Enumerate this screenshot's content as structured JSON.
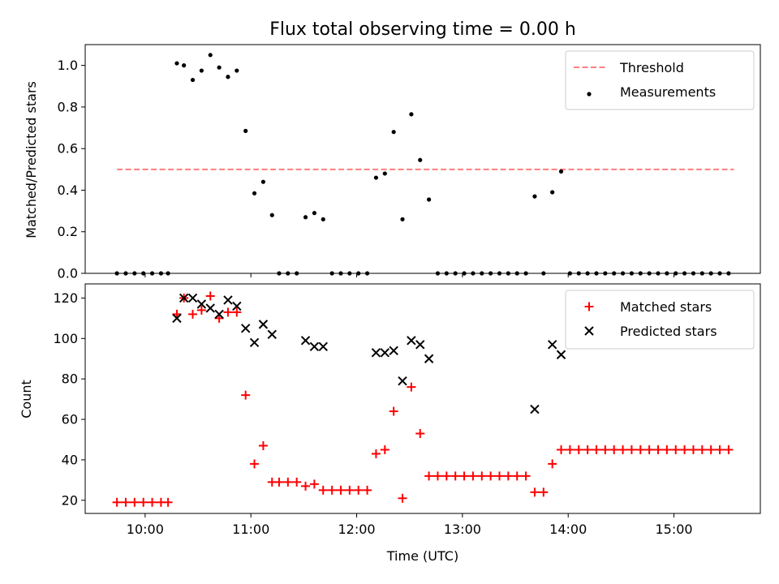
{
  "title": "Flux total observing time = 0.00 h",
  "x_axis": {
    "label": "Time (UTC)",
    "ticks": [
      "10:00",
      "11:00",
      "12:00",
      "13:00",
      "14:00",
      "15:00"
    ]
  },
  "colors": {
    "threshold": "#ff7f7f",
    "measurements": "#000000",
    "matched": "#ff0000",
    "predicted": "#000000"
  },
  "chart_data": [
    {
      "type": "scatter",
      "ylabel": "Matched/Predicted stars",
      "xlim": [
        "09:26",
        "15:49"
      ],
      "ylim": [
        0,
        1.1
      ],
      "yticks": [
        "0.0",
        "0.2",
        "0.4",
        "0.6",
        "0.8",
        "1.0"
      ],
      "legend_position": "top-right",
      "threshold": {
        "name": "Threshold",
        "y": 0.5,
        "x_start": "09:44",
        "x_end": "15:34"
      },
      "series": [
        {
          "name": "Measurements",
          "marker": "dot",
          "points": [
            [
              "09:44",
              0.0
            ],
            [
              "09:49",
              0.0
            ],
            [
              "09:54",
              0.0
            ],
            [
              "09:59",
              0.0
            ],
            [
              "10:04",
              0.0
            ],
            [
              "10:09",
              0.0
            ],
            [
              "10:13",
              0.0
            ],
            [
              "10:18",
              1.01
            ],
            [
              "10:22",
              1.0
            ],
            [
              "10:27",
              0.93
            ],
            [
              "10:32",
              0.975
            ],
            [
              "10:37",
              1.05
            ],
            [
              "10:42",
              0.99
            ],
            [
              "10:47",
              0.945
            ],
            [
              "10:52",
              0.975
            ],
            [
              "10:57",
              0.685
            ],
            [
              "11:02",
              0.385
            ],
            [
              "11:07",
              0.44
            ],
            [
              "11:12",
              0.28
            ],
            [
              "11:16",
              0.0
            ],
            [
              "11:21",
              0.0
            ],
            [
              "11:26",
              0.0
            ],
            [
              "11:31",
              0.27
            ],
            [
              "11:36",
              0.29
            ],
            [
              "11:41",
              0.26
            ],
            [
              "11:46",
              0.0
            ],
            [
              "11:51",
              0.0
            ],
            [
              "11:56",
              0.0
            ],
            [
              "12:01",
              0.0
            ],
            [
              "12:06",
              0.0
            ],
            [
              "12:11",
              0.46
            ],
            [
              "12:16",
              0.48
            ],
            [
              "12:21",
              0.68
            ],
            [
              "12:26",
              0.26
            ],
            [
              "12:31",
              0.765
            ],
            [
              "12:36",
              0.545
            ],
            [
              "12:41",
              0.355
            ],
            [
              "12:46",
              0.0
            ],
            [
              "12:51",
              0.0
            ],
            [
              "12:56",
              0.0
            ],
            [
              "13:01",
              0.0
            ],
            [
              "13:06",
              0.0
            ],
            [
              "13:11",
              0.0
            ],
            [
              "13:16",
              0.0
            ],
            [
              "13:21",
              0.0
            ],
            [
              "13:26",
              0.0
            ],
            [
              "13:31",
              0.0
            ],
            [
              "13:36",
              0.0
            ],
            [
              "13:41",
              0.37
            ],
            [
              "13:46",
              0.0
            ],
            [
              "13:51",
              0.39
            ],
            [
              "13:56",
              0.49
            ],
            [
              "14:01",
              0.0
            ],
            [
              "14:06",
              0.0
            ],
            [
              "14:11",
              0.0
            ],
            [
              "14:16",
              0.0
            ],
            [
              "14:21",
              0.0
            ],
            [
              "14:26",
              0.0
            ],
            [
              "14:31",
              0.0
            ],
            [
              "14:36",
              0.0
            ],
            [
              "14:41",
              0.0
            ],
            [
              "14:46",
              0.0
            ],
            [
              "14:51",
              0.0
            ],
            [
              "14:56",
              0.0
            ],
            [
              "15:01",
              0.0
            ],
            [
              "15:06",
              0.0
            ],
            [
              "15:11",
              0.0
            ],
            [
              "15:16",
              0.0
            ],
            [
              "15:21",
              0.0
            ],
            [
              "15:26",
              0.0
            ],
            [
              "15:31",
              0.0
            ]
          ]
        }
      ]
    },
    {
      "type": "scatter",
      "ylabel": "Count",
      "xlim": [
        "09:26",
        "15:49"
      ],
      "ylim": [
        13.5,
        127
      ],
      "yticks": [
        "20",
        "40",
        "60",
        "80",
        "100",
        "120"
      ],
      "legend_position": "top-right",
      "series": [
        {
          "name": "Matched stars",
          "marker": "plus",
          "points": [
            [
              "09:44",
              19
            ],
            [
              "09:49",
              19
            ],
            [
              "09:54",
              19
            ],
            [
              "09:59",
              19
            ],
            [
              "10:04",
              19
            ],
            [
              "10:09",
              19
            ],
            [
              "10:13",
              19
            ],
            [
              "10:18",
              112
            ],
            [
              "10:22",
              120
            ],
            [
              "10:27",
              112
            ],
            [
              "10:32",
              114
            ],
            [
              "10:37",
              121
            ],
            [
              "10:42",
              110
            ],
            [
              "10:47",
              113
            ],
            [
              "10:52",
              113
            ],
            [
              "10:57",
              72
            ],
            [
              "11:02",
              38
            ],
            [
              "11:07",
              47
            ],
            [
              "11:12",
              29
            ],
            [
              "11:16",
              29
            ],
            [
              "11:21",
              29
            ],
            [
              "11:26",
              29
            ],
            [
              "11:31",
              27
            ],
            [
              "11:36",
              28
            ],
            [
              "11:41",
              25
            ],
            [
              "11:46",
              25
            ],
            [
              "11:51",
              25
            ],
            [
              "11:56",
              25
            ],
            [
              "12:01",
              25
            ],
            [
              "12:06",
              25
            ],
            [
              "12:11",
              43
            ],
            [
              "12:16",
              45
            ],
            [
              "12:21",
              64
            ],
            [
              "12:26",
              21
            ],
            [
              "12:31",
              76
            ],
            [
              "12:36",
              53
            ],
            [
              "12:41",
              32
            ],
            [
              "12:46",
              32
            ],
            [
              "12:51",
              32
            ],
            [
              "12:56",
              32
            ],
            [
              "13:01",
              32
            ],
            [
              "13:06",
              32
            ],
            [
              "13:11",
              32
            ],
            [
              "13:16",
              32
            ],
            [
              "13:21",
              32
            ],
            [
              "13:26",
              32
            ],
            [
              "13:31",
              32
            ],
            [
              "13:36",
              32
            ],
            [
              "13:41",
              24
            ],
            [
              "13:46",
              24
            ],
            [
              "13:51",
              38
            ],
            [
              "13:56",
              45
            ],
            [
              "14:01",
              45
            ],
            [
              "14:06",
              45
            ],
            [
              "14:11",
              45
            ],
            [
              "14:16",
              45
            ],
            [
              "14:21",
              45
            ],
            [
              "14:26",
              45
            ],
            [
              "14:31",
              45
            ],
            [
              "14:36",
              45
            ],
            [
              "14:41",
              45
            ],
            [
              "14:46",
              45
            ],
            [
              "14:51",
              45
            ],
            [
              "14:56",
              45
            ],
            [
              "15:01",
              45
            ],
            [
              "15:06",
              45
            ],
            [
              "15:11",
              45
            ],
            [
              "15:16",
              45
            ],
            [
              "15:21",
              45
            ],
            [
              "15:26",
              45
            ],
            [
              "15:31",
              45
            ]
          ]
        },
        {
          "name": "Predicted stars",
          "marker": "x",
          "points": [
            [
              "10:18",
              110
            ],
            [
              "10:22",
              120
            ],
            [
              "10:27",
              120
            ],
            [
              "10:32",
              117
            ],
            [
              "10:37",
              115
            ],
            [
              "10:42",
              112
            ],
            [
              "10:47",
              119
            ],
            [
              "10:52",
              116
            ],
            [
              "10:57",
              105
            ],
            [
              "11:02",
              98
            ],
            [
              "11:07",
              107
            ],
            [
              "11:12",
              102
            ],
            [
              "11:31",
              99
            ],
            [
              "11:36",
              96
            ],
            [
              "11:41",
              96
            ],
            [
              "12:11",
              93
            ],
            [
              "12:16",
              93
            ],
            [
              "12:21",
              94
            ],
            [
              "12:26",
              79
            ],
            [
              "12:31",
              99
            ],
            [
              "12:36",
              97
            ],
            [
              "12:41",
              90
            ],
            [
              "13:41",
              65
            ],
            [
              "13:51",
              97
            ],
            [
              "13:56",
              92
            ]
          ]
        }
      ]
    }
  ]
}
